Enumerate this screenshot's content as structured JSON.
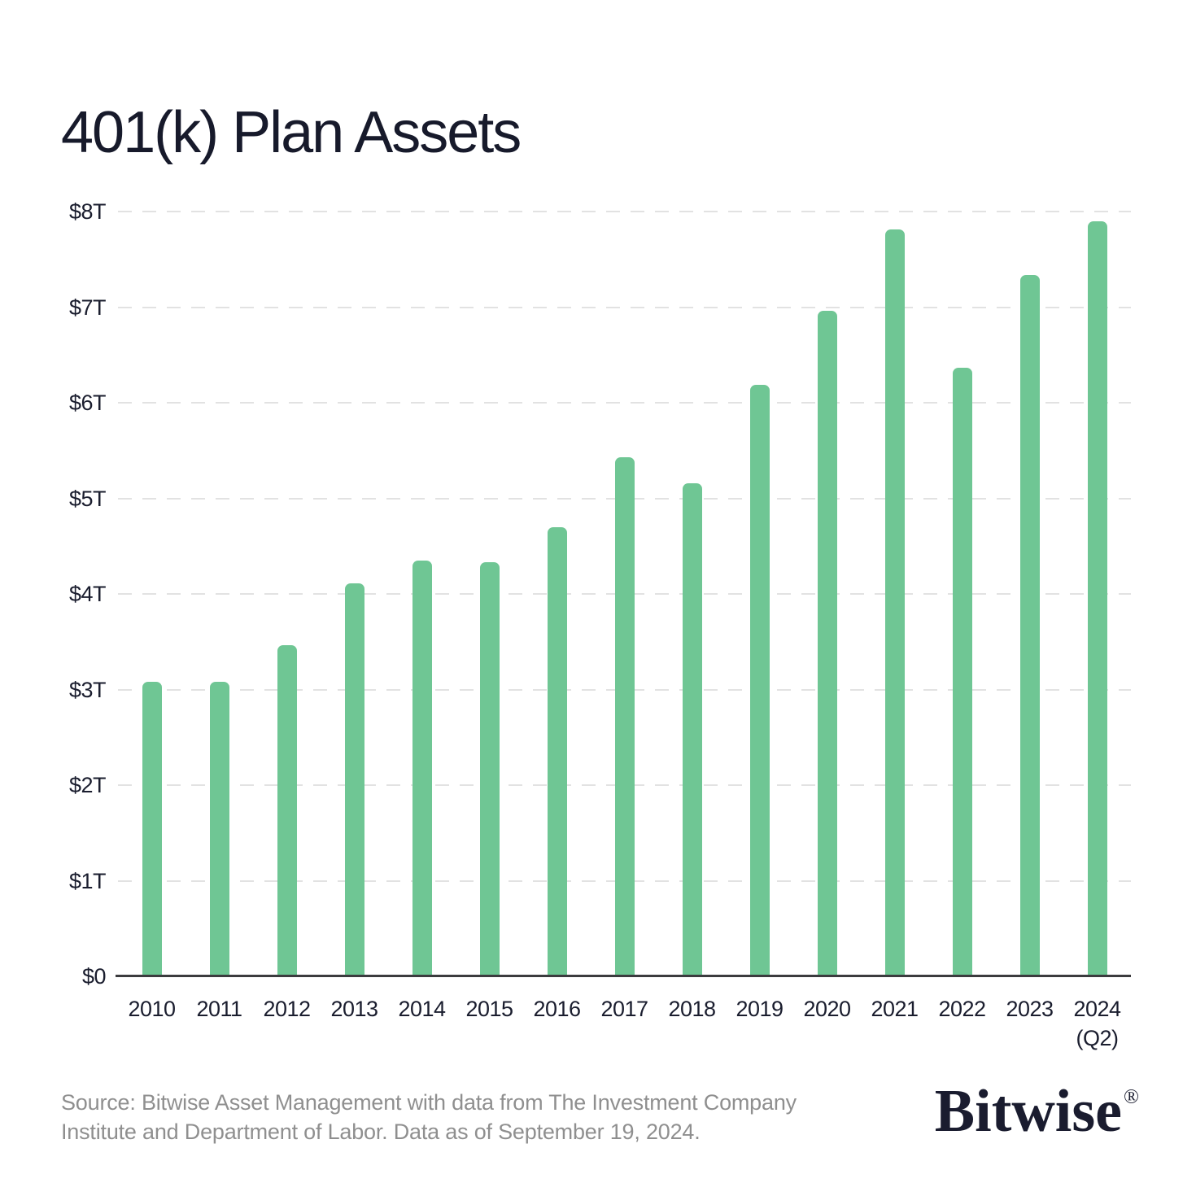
{
  "page": {
    "background": "#FFFFFF"
  },
  "chart_data": {
    "type": "bar",
    "title": "401(k) Plan Assets",
    "categories": [
      "2010",
      "2011",
      "2012",
      "2013",
      "2014",
      "2015",
      "2016",
      "2017",
      "2018",
      "2019",
      "2020",
      "2021",
      "2022",
      "2023",
      "2024"
    ],
    "x_sublabels": [
      "",
      "",
      "",
      "",
      "",
      "",
      "",
      "",
      "",
      "",
      "",
      "",
      "",
      "",
      "(Q2)"
    ],
    "values": [
      3.08,
      3.08,
      3.46,
      4.11,
      4.35,
      4.33,
      4.7,
      5.43,
      5.16,
      6.19,
      6.96,
      7.81,
      6.37,
      7.34,
      7.9
    ],
    "unit": "trillions of USD",
    "y_ticks": [
      "$8T",
      "$7T",
      "$6T",
      "$5T",
      "$4T",
      "$3T",
      "$2T",
      "$1T",
      "$0"
    ],
    "ylim": [
      0,
      8
    ],
    "grid": "horizontal dashed gridlines, solid baseline",
    "legend": "none",
    "bar_color": "#6FC694"
  },
  "footer": {
    "source_line1": "Source: Bitwise Asset Management with data from The Investment Company",
    "source_line2": "Institute and Department of Labor. Data as of September 19, 2024.",
    "logo_text": "Bitwise",
    "logo_symbol": "®"
  },
  "colors": {
    "bar": "#6FC694",
    "title_text": "#171A2B",
    "axis_text": "#1A1D2E",
    "source_text": "#8F8F8F",
    "gridline": "#E2E2E2",
    "axis_line": "#3B3B3E"
  }
}
